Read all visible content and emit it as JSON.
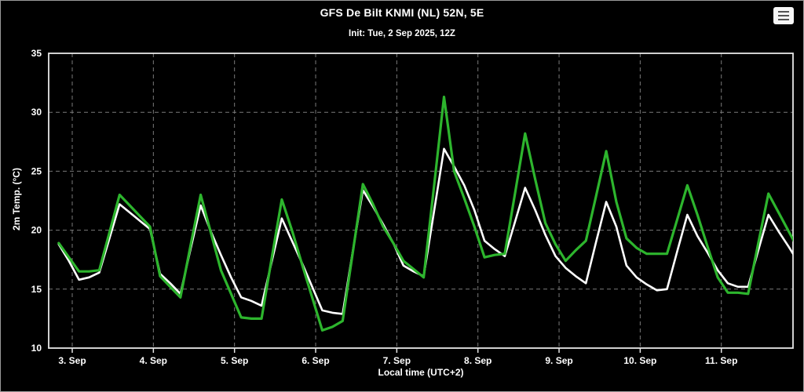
{
  "header": {
    "title": "GFS De Bilt KNMI (NL) 52N, 5E",
    "subtitle": "Init: Tue, 2 Sep 2025, 12Z"
  },
  "colors": {
    "background": "#000000",
    "green_series": "#2db52d",
    "white_series": "#ffffff",
    "grid": "#7a7a7a",
    "axis_border": "#e6e6e6",
    "text": "#ffffff"
  },
  "chart_data": {
    "type": "line",
    "title": "GFS De Bilt KNMI (NL) 52N, 5E",
    "subtitle": "Init: Tue, 2 Sep 2025, 12Z",
    "xlabel": "Local time (UTC+2)",
    "ylabel": "2m Temp. (°C)",
    "ylim": [
      10,
      35
    ],
    "yticks": [
      10,
      15,
      20,
      25,
      30,
      35
    ],
    "x_day_labels": [
      "3. Sep",
      "4. Sep",
      "5. Sep",
      "6. Sep",
      "7. Sep",
      "8. Sep",
      "9. Sep",
      "10. Sep",
      "11. Sep"
    ],
    "grid": true,
    "legend_position": "none",
    "sampling": {
      "start": "2025-09-02 20:00",
      "step_hours": 3,
      "points": 74
    },
    "series": [
      {
        "name": "green line (GFS 2m temperature)",
        "color": "#2db52d",
        "values": [
          18.9,
          17.7,
          16.5,
          16.5,
          16.6,
          19.8,
          23.0,
          22.1,
          21.2,
          20.3,
          16.1,
          15.2,
          14.3,
          18.7,
          23.0,
          19.8,
          16.6,
          14.6,
          12.6,
          12.5,
          12.5,
          17.6,
          22.6,
          20.0,
          17.1,
          14.3,
          11.5,
          11.8,
          12.3,
          18.1,
          23.9,
          22.2,
          20.3,
          18.9,
          17.4,
          16.7,
          16.0,
          23.6,
          31.3,
          25.0,
          22.7,
          20.3,
          17.7,
          17.9,
          18.0,
          23.1,
          28.2,
          24.3,
          20.6,
          18.8,
          17.4,
          18.3,
          19.1,
          22.9,
          26.7,
          22.4,
          19.3,
          18.5,
          18.0,
          18.0,
          18.0,
          20.9,
          23.8,
          21.3,
          18.6,
          16.0,
          14.7,
          14.7,
          14.6,
          18.9,
          23.1,
          21.5,
          19.9,
          18.3
        ]
      },
      {
        "name": "white line (2m temperature)",
        "color": "#ffffff",
        "values": [
          18.8,
          17.4,
          15.8,
          16.0,
          16.4,
          19.3,
          22.2,
          21.5,
          20.8,
          20.1,
          16.3,
          15.5,
          14.6,
          18.4,
          22.1,
          19.9,
          17.9,
          16.0,
          14.3,
          14.0,
          13.6,
          17.3,
          21.0,
          19.1,
          17.2,
          15.2,
          13.2,
          13.0,
          12.9,
          18.2,
          23.4,
          22.0,
          20.5,
          18.9,
          17.0,
          16.5,
          16.1,
          21.5,
          26.9,
          25.4,
          23.8,
          21.7,
          19.1,
          18.4,
          17.8,
          20.7,
          23.6,
          21.7,
          19.6,
          17.8,
          16.8,
          16.1,
          15.5,
          19.0,
          22.4,
          20.3,
          17.0,
          16.0,
          15.4,
          14.9,
          15.0,
          18.2,
          21.3,
          19.5,
          18.1,
          16.6,
          15.5,
          15.2,
          15.2,
          18.3,
          21.3,
          19.9,
          18.6,
          17.2
        ]
      }
    ]
  }
}
